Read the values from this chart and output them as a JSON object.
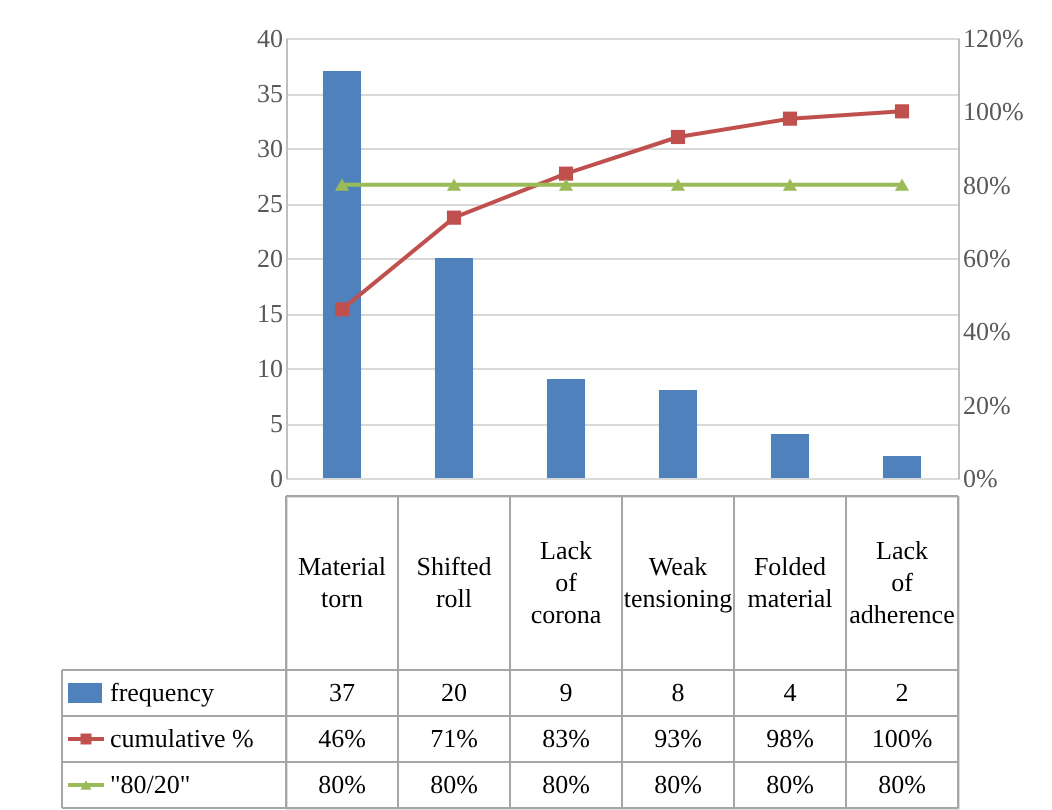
{
  "chart_data": {
    "type": "bar",
    "categories": [
      "Material torn",
      "Shifted roll",
      "Lack of corona",
      "Weak tensioning",
      "Folded material",
      "Lack of adherence"
    ],
    "series": [
      {
        "name": "frequency",
        "type": "bar",
        "color": "#4f81bd",
        "values": [
          37,
          20,
          9,
          8,
          4,
          2
        ],
        "value_labels": [
          "37",
          "20",
          "9",
          "8",
          "4",
          "2"
        ]
      },
      {
        "name": "cumulative %",
        "type": "line",
        "axis": "y2",
        "marker": "square",
        "color": "#c0504d",
        "values": [
          46,
          71,
          83,
          93,
          98,
          100
        ],
        "value_labels": [
          "46%",
          "71%",
          "83%",
          "93%",
          "98%",
          "100%"
        ]
      },
      {
        "name": "\"80/20\"",
        "type": "line",
        "axis": "y2",
        "marker": "triangle",
        "color": "#9bbb59",
        "values": [
          80,
          80,
          80,
          80,
          80,
          80
        ],
        "value_labels": [
          "80%",
          "80%",
          "80%",
          "80%",
          "80%",
          "80%"
        ]
      }
    ],
    "ylim": [
      0,
      40
    ],
    "yticks": [
      0,
      5,
      10,
      15,
      20,
      25,
      30,
      35,
      40
    ],
    "y2lim": [
      0,
      120
    ],
    "y2ticks": [
      {
        "value": 0,
        "label": "0%"
      },
      {
        "value": 20,
        "label": "20%"
      },
      {
        "value": 40,
        "label": "40%"
      },
      {
        "value": 60,
        "label": "60%"
      },
      {
        "value": 80,
        "label": "80%"
      },
      {
        "value": 100,
        "label": "100%"
      },
      {
        "value": 120,
        "label": "120%"
      }
    ],
    "grid": "y",
    "legend": "bottom"
  }
}
